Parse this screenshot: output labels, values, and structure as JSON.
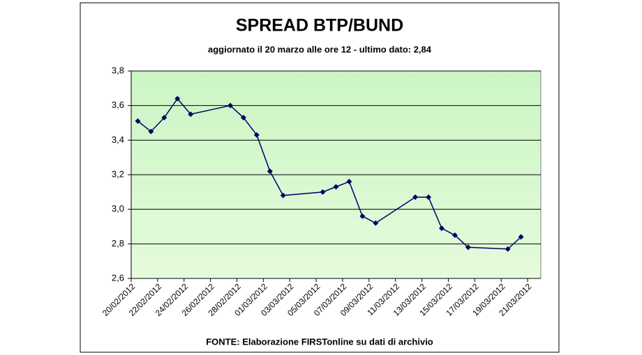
{
  "chart_data": {
    "type": "line",
    "title": "SPREAD BTP/BUND",
    "subtitle": "aggiornato il 20 marzo alle ore 12 - ultimo dato: 2,84",
    "source": "FONTE: Elaborazione FIRSTonline su dati di archivio",
    "x": [
      "2012-02-20",
      "2012-02-21",
      "2012-02-22",
      "2012-02-23",
      "2012-02-24",
      "2012-02-27",
      "2012-02-28",
      "2012-02-29",
      "2012-03-01",
      "2012-03-02",
      "2012-03-05",
      "2012-03-06",
      "2012-03-07",
      "2012-03-08",
      "2012-03-09",
      "2012-03-12",
      "2012-03-13",
      "2012-03-14",
      "2012-03-15",
      "2012-03-16",
      "2012-03-19",
      "2012-03-20"
    ],
    "series": [
      {
        "color": "#000066",
        "values": [
          3.51,
          3.45,
          3.53,
          3.64,
          3.55,
          3.6,
          3.53,
          3.43,
          3.22,
          3.08,
          3.1,
          3.13,
          3.16,
          2.96,
          2.92,
          3.07,
          3.07,
          2.89,
          2.85,
          2.78,
          2.77,
          2.84
        ]
      }
    ],
    "xlim": [
      "2012-02-20",
      "2012-03-22"
    ],
    "xticks": [
      {
        "value": "2012-02-20",
        "label": "20/02/2012"
      },
      {
        "value": "2012-02-22",
        "label": "22/02/2012"
      },
      {
        "value": "2012-02-24",
        "label": "24/02/2012"
      },
      {
        "value": "2012-02-26",
        "label": "26/02/2012"
      },
      {
        "value": "2012-02-28",
        "label": "28/02/2012"
      },
      {
        "value": "2012-03-01",
        "label": "01/03/2012"
      },
      {
        "value": "2012-03-03",
        "label": "03/03/2012"
      },
      {
        "value": "2012-03-05",
        "label": "05/03/2012"
      },
      {
        "value": "2012-03-07",
        "label": "07/03/2012"
      },
      {
        "value": "2012-03-09",
        "label": "09/03/2012"
      },
      {
        "value": "2012-03-11",
        "label": "11/03/2012"
      },
      {
        "value": "2012-03-13",
        "label": "13/03/2012"
      },
      {
        "value": "2012-03-15",
        "label": "15/03/2012"
      },
      {
        "value": "2012-03-17",
        "label": "17/03/2012"
      },
      {
        "value": "2012-03-19",
        "label": "19/03/2012"
      },
      {
        "value": "2012-03-21",
        "label": "21/03/2012"
      }
    ],
    "ylim": [
      2.6,
      3.8
    ],
    "yticks": [
      {
        "value": 2.6,
        "label": "2,6"
      },
      {
        "value": 2.8,
        "label": "2,8"
      },
      {
        "value": 3.0,
        "label": "3,0"
      },
      {
        "value": 3.2,
        "label": "3,2"
      },
      {
        "value": 3.4,
        "label": "3,4"
      },
      {
        "value": 3.6,
        "label": "3,6"
      },
      {
        "value": 3.8,
        "label": "3,8"
      }
    ],
    "grid": true,
    "plot_background": "#ccffcc"
  }
}
